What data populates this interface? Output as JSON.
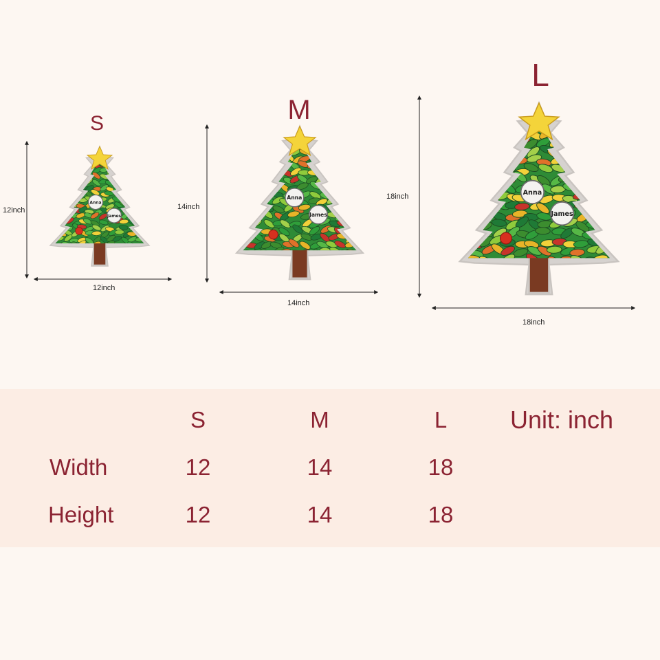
{
  "sizes": [
    {
      "letter": "S",
      "width_label": "12inch",
      "height_label": "12inch"
    },
    {
      "letter": "M",
      "width_label": "14inch",
      "height_label": "14inch"
    },
    {
      "letter": "L",
      "width_label": "18inch",
      "height_label": "18inch"
    }
  ],
  "ornaments": {
    "name1": "Anna",
    "name2": "James"
  },
  "table": {
    "headers": [
      "S",
      "M",
      "L"
    ],
    "unit": "Unit: inch",
    "rows": [
      {
        "label": "Width",
        "values": [
          "12",
          "14",
          "18"
        ]
      },
      {
        "label": "Height",
        "values": [
          "12",
          "14",
          "18"
        ]
      }
    ]
  },
  "colors": {
    "accent": "#8b2332",
    "background": "#fdf7f2",
    "band": "#fcede4"
  }
}
